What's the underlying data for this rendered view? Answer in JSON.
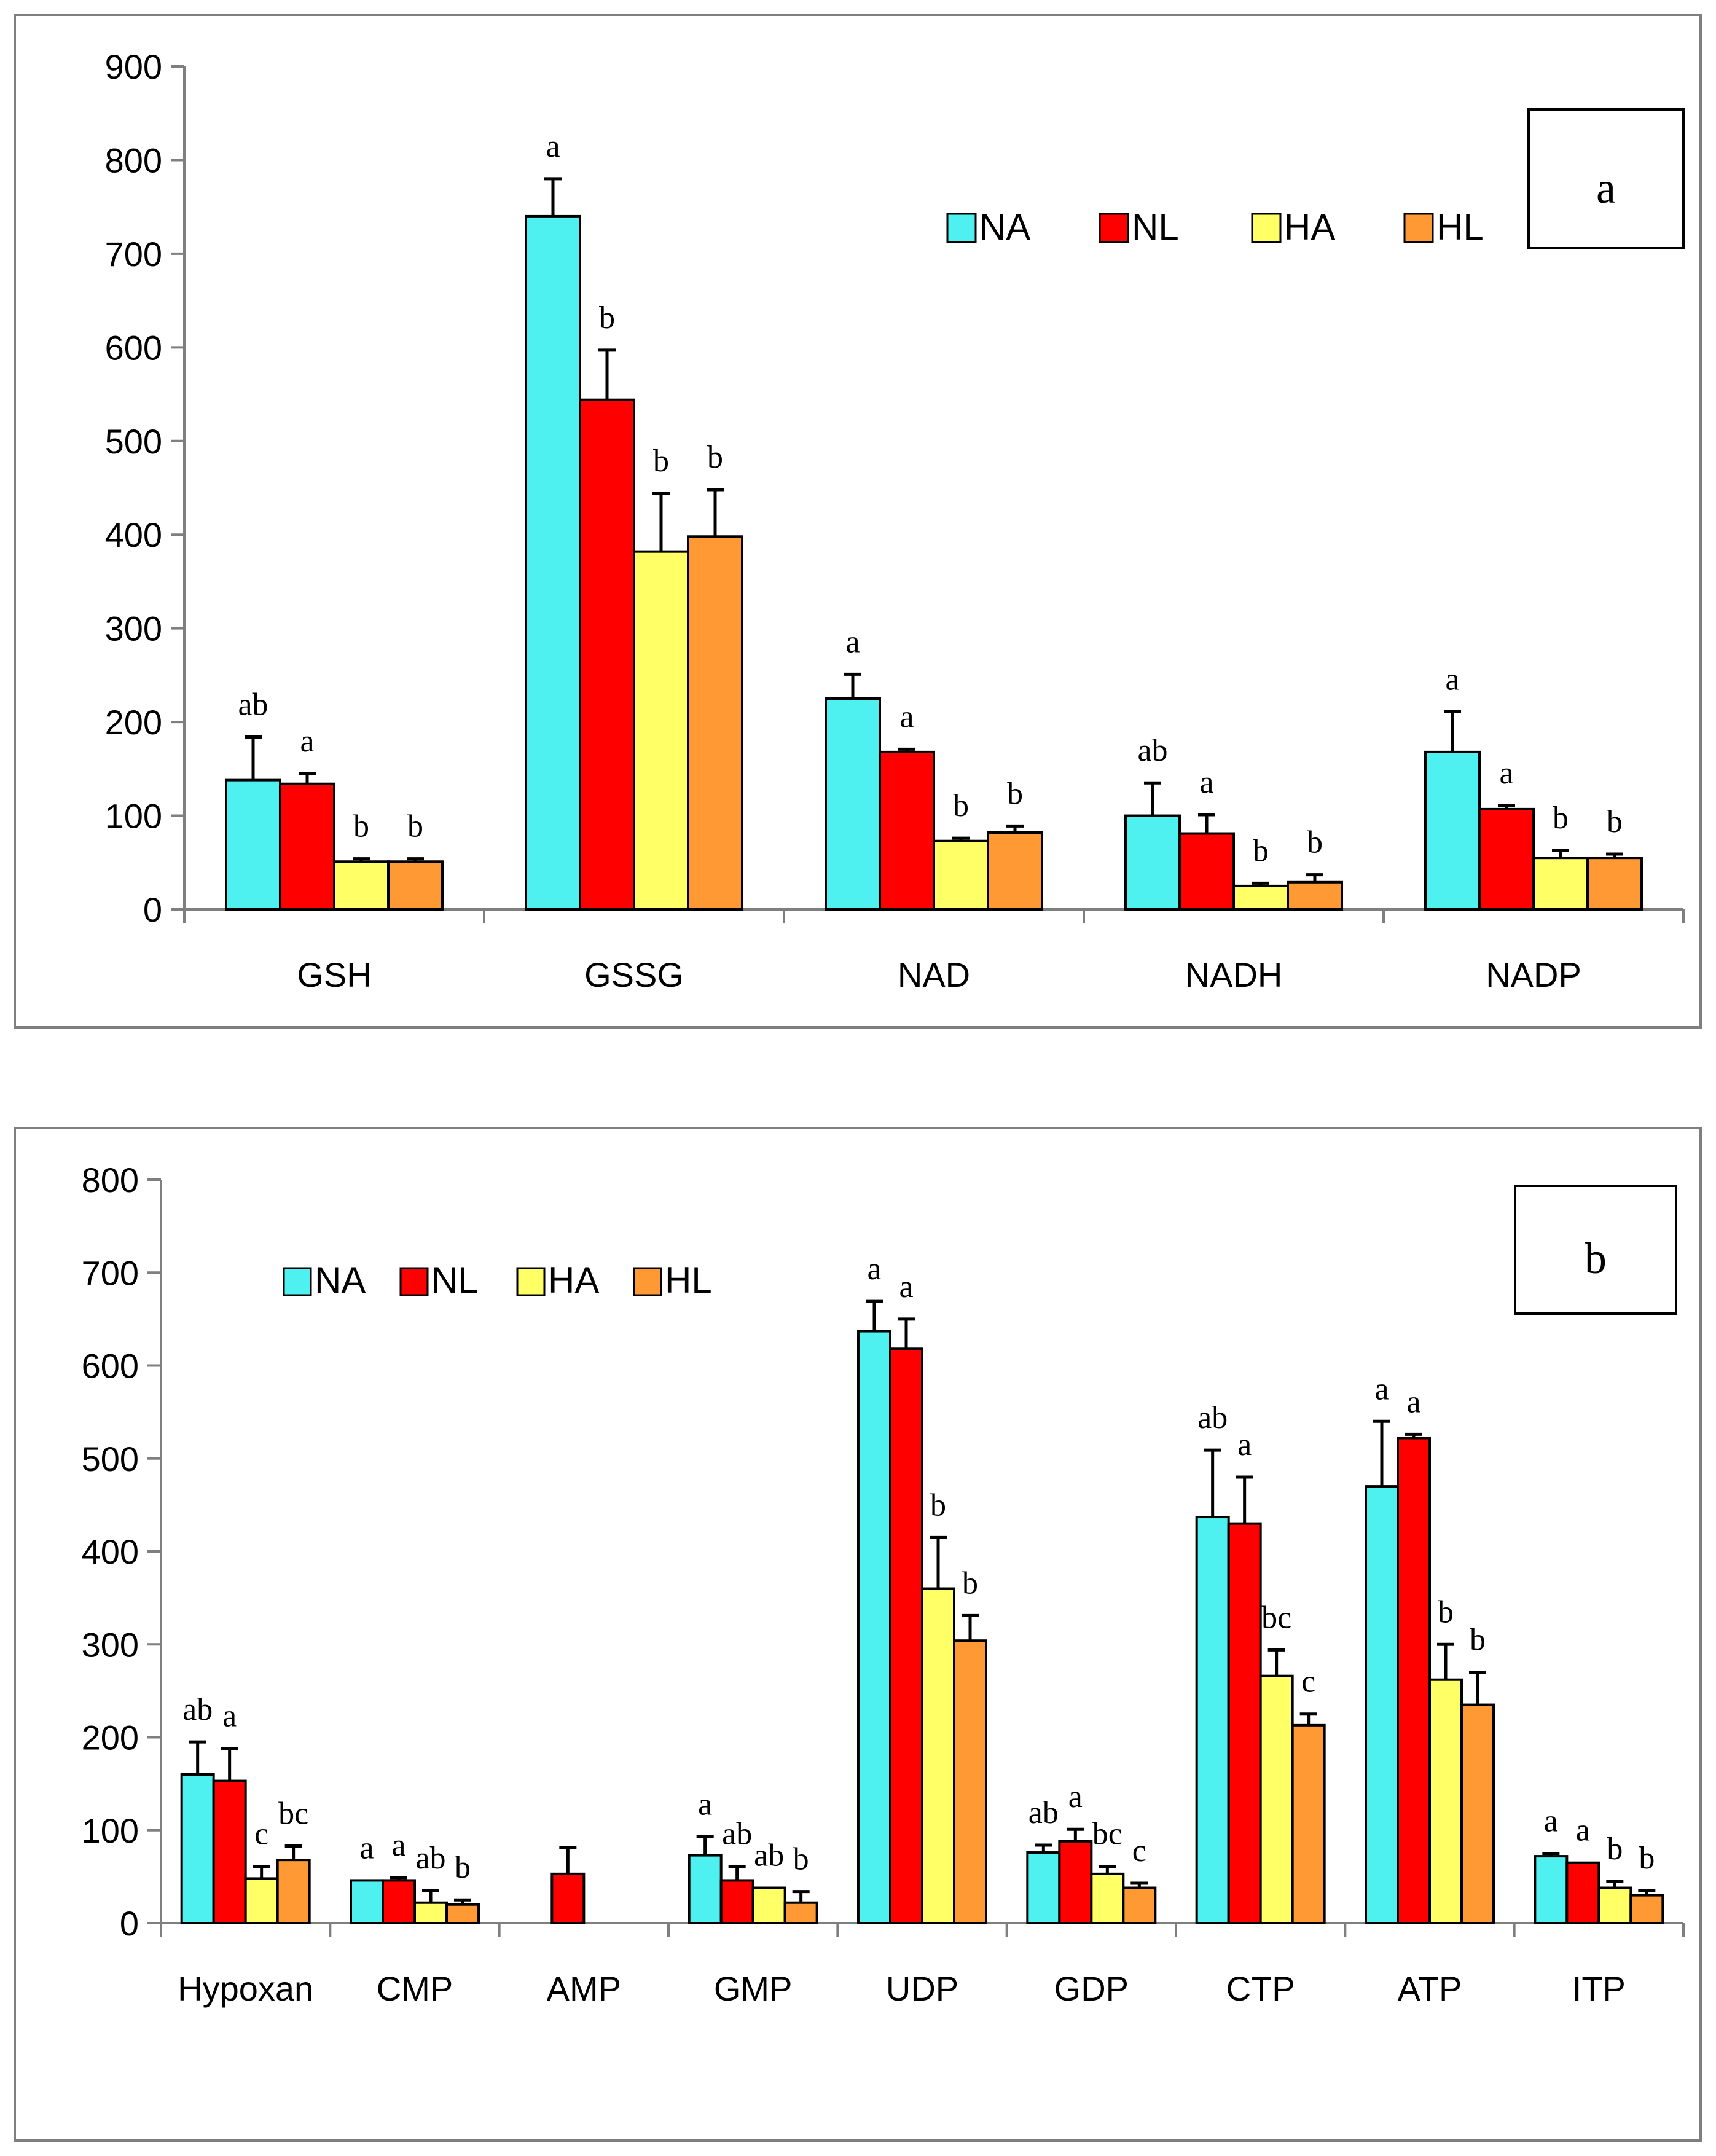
{
  "chart_data": [
    {
      "type": "bar",
      "panel_label": "a",
      "ylim": [
        0,
        900
      ],
      "yticks": [
        "0",
        "100",
        "200",
        "300",
        "400",
        "500",
        "600",
        "700",
        "800",
        "900"
      ],
      "legend_position": "top-right",
      "categories": [
        "GSH",
        "GSSG",
        "NAD",
        "NADH",
        "NADP"
      ],
      "series": [
        {
          "name": "NA",
          "color": "#4ff0f0",
          "values": [
            138,
            740,
            225,
            100,
            168
          ],
          "errors": [
            46,
            40,
            26,
            35,
            43
          ]
        },
        {
          "name": "NL",
          "color": "#ff0000",
          "values": [
            134,
            544,
            168,
            81,
            107
          ],
          "errors": [
            11,
            53,
            3,
            20,
            4
          ]
        },
        {
          "name": "HA",
          "color": "#ffff66",
          "values": [
            51,
            382,
            73,
            25,
            55
          ],
          "errors": [
            3,
            62,
            3,
            3,
            8
          ]
        },
        {
          "name": "HL",
          "color": "#ff9933",
          "values": [
            51,
            398,
            82,
            29,
            55
          ],
          "errors": [
            3,
            50,
            7,
            8,
            4
          ]
        }
      ],
      "significance": [
        [
          "ab",
          "a",
          "b",
          "b"
        ],
        [
          "a",
          "b",
          "b",
          "b"
        ],
        [
          "a",
          "a",
          "b",
          "b"
        ],
        [
          "ab",
          "a",
          "b",
          "b"
        ],
        [
          "a",
          "a",
          "b",
          "b"
        ]
      ]
    },
    {
      "type": "bar",
      "panel_label": "b",
      "ylim": [
        0,
        800
      ],
      "yticks": [
        "0",
        "100",
        "200",
        "300",
        "400",
        "500",
        "600",
        "700",
        "800"
      ],
      "legend_position": "top-left",
      "categories": [
        "Hypoxan",
        "CMP",
        "AMP",
        "GMP",
        "UDP",
        "GDP",
        "CTP",
        "ATP",
        "ITP"
      ],
      "series": [
        {
          "name": "NA",
          "color": "#4ff0f0",
          "values": [
            160,
            46,
            0,
            73,
            637,
            76,
            437,
            470,
            72
          ],
          "errors": [
            35,
            0,
            0,
            20,
            32,
            8,
            72,
            70,
            3
          ]
        },
        {
          "name": "NL",
          "color": "#ff0000",
          "values": [
            153,
            46,
            53,
            46,
            618,
            88,
            430,
            522,
            65
          ],
          "errors": [
            35,
            3,
            28,
            15,
            32,
            13,
            50,
            4,
            0
          ]
        },
        {
          "name": "HA",
          "color": "#ffff66",
          "values": [
            48,
            22,
            0,
            38,
            360,
            53,
            266,
            262,
            38
          ],
          "errors": [
            13,
            13,
            0,
            0,
            55,
            8,
            28,
            38,
            7
          ]
        },
        {
          "name": "HL",
          "color": "#ff9933",
          "values": [
            68,
            20,
            0,
            22,
            304,
            38,
            213,
            235,
            30
          ],
          "errors": [
            15,
            5,
            0,
            12,
            27,
            5,
            12,
            35,
            5
          ]
        }
      ],
      "significance": [
        [
          "ab",
          "a",
          "c",
          "bc"
        ],
        [
          "a",
          "a",
          "ab",
          "b"
        ],
        [
          "",
          "",
          "",
          ""
        ],
        [
          "a",
          "ab",
          "ab",
          "b"
        ],
        [
          "a",
          "a",
          "b",
          "b"
        ],
        [
          "ab",
          "a",
          "bc",
          "c"
        ],
        [
          "ab",
          "a",
          "bc",
          "c"
        ],
        [
          "a",
          "a",
          "b",
          "b"
        ],
        [
          "a",
          "a",
          "b",
          "b"
        ]
      ]
    }
  ]
}
